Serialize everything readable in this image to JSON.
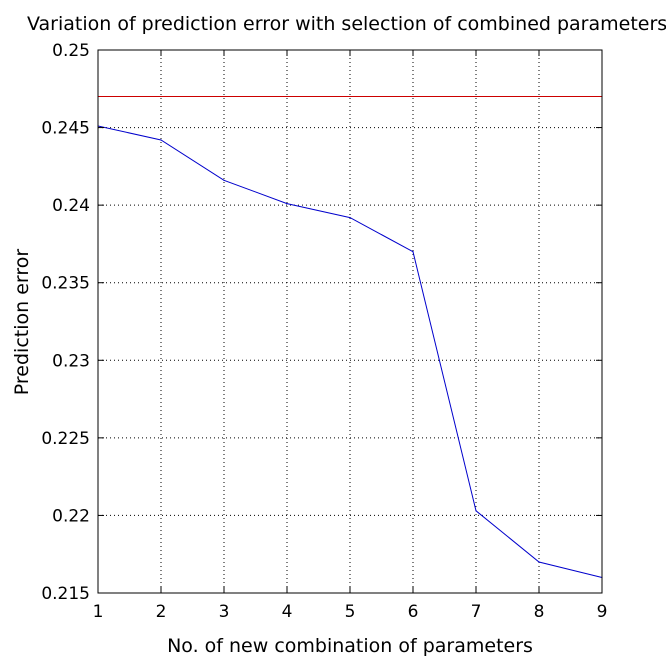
{
  "chart_data": {
    "type": "line",
    "title": "Variation of prediction error with selection of combined parameters",
    "xlabel": "No. of new combination of parameters",
    "ylabel": "Prediction error",
    "xlim": [
      1,
      9
    ],
    "ylim": [
      0.215,
      0.25
    ],
    "x_ticks": [
      1,
      2,
      3,
      4,
      5,
      6,
      7,
      8,
      9
    ],
    "x_tick_labels": [
      "1",
      "2",
      "3",
      "4",
      "5",
      "6",
      "7",
      "8",
      "9"
    ],
    "y_ticks": [
      0.215,
      0.22,
      0.225,
      0.23,
      0.235,
      0.24,
      0.245,
      0.25
    ],
    "y_tick_labels": [
      "0.215",
      "0.22",
      "0.225",
      "0.23",
      "0.235",
      "0.24",
      "0.245",
      "0.25"
    ],
    "grid": true,
    "legend": false,
    "series": [
      {
        "color": "#0000cc",
        "x": [
          1,
          2,
          3,
          4,
          5,
          6,
          7,
          8,
          9
        ],
        "values": [
          0.2451,
          0.2442,
          0.2416,
          0.2401,
          0.2392,
          0.237,
          0.2203,
          0.217,
          0.216
        ]
      },
      {
        "color": "#cc0000",
        "x": [
          1,
          9
        ],
        "values": [
          0.247,
          0.247
        ]
      }
    ]
  }
}
